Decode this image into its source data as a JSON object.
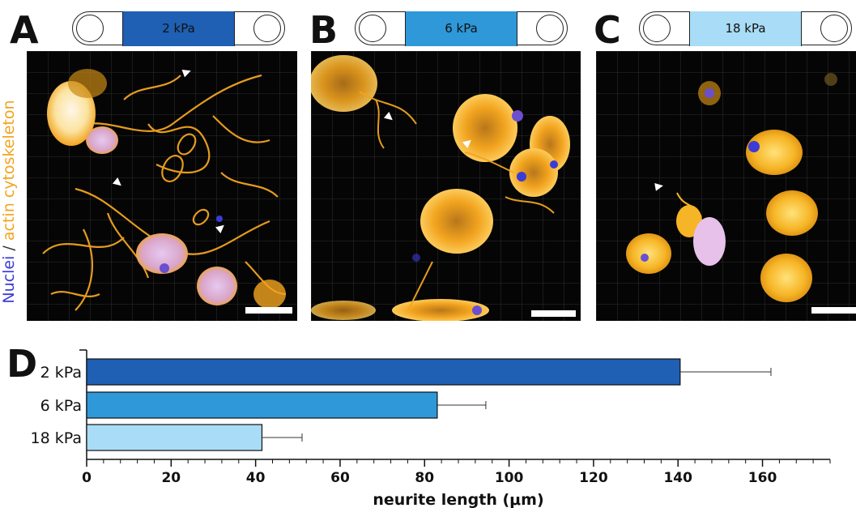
{
  "panels": [
    {
      "letter": "A",
      "stiffness": "2 kPa",
      "band_color": "#1f5fb4",
      "text_color": "#111111"
    },
    {
      "letter": "B",
      "stiffness": "6 kPa",
      "band_color": "#2e98d8",
      "text_color": "#111111"
    },
    {
      "letter": "C",
      "stiffness": "18 kPa",
      "band_color": "#a9dcf6",
      "text_color": "#111111"
    }
  ],
  "stain_label": {
    "nuclei": "Nuclei",
    "separator": "/",
    "actin": "actin cytoskeleton"
  },
  "colors": {
    "nuclei": "#3b3bd6",
    "actin": "#f2a41f",
    "micro_background": "#050505"
  },
  "chart_data": {
    "type": "bar",
    "orientation": "horizontal",
    "panel_letter": "D",
    "categories": [
      "2 kPa",
      "6 kPa",
      "18 kPa"
    ],
    "values": [
      140.5,
      83,
      41.5
    ],
    "error": [
      21.5,
      11.5,
      9.5
    ],
    "bar_colors": [
      "#1f5fb4",
      "#2e98d8",
      "#a9dcf6"
    ],
    "xlabel": "neurite length (μm)",
    "xticks": [
      0,
      20,
      40,
      60,
      80,
      100,
      120,
      140,
      160
    ],
    "xlim": [
      0,
      176
    ],
    "grid": false
  }
}
